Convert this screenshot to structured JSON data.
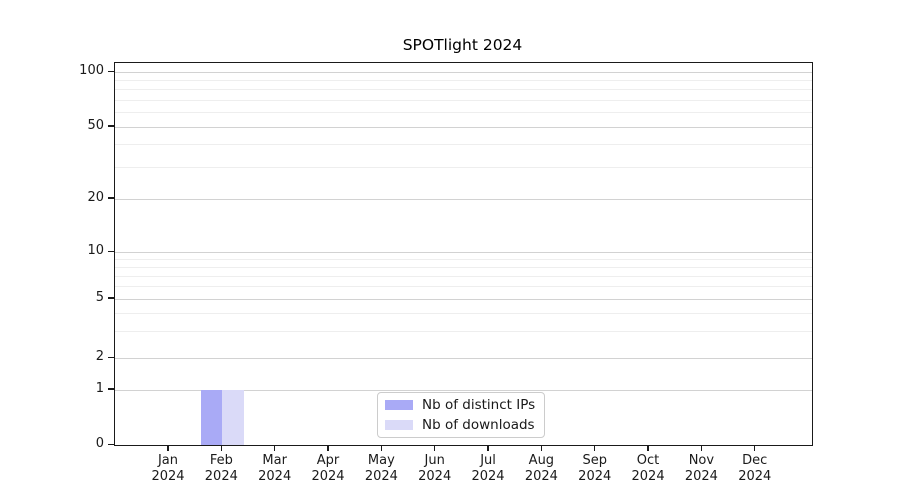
{
  "chart_data": {
    "type": "bar",
    "title": "SPOTlight 2024",
    "categories": [
      "Jan 2024",
      "Feb 2024",
      "Mar 2024",
      "Apr 2024",
      "May 2024",
      "Jun 2024",
      "Jul 2024",
      "Aug 2024",
      "Sep 2024",
      "Oct 2024",
      "Nov 2024",
      "Dec 2024"
    ],
    "series": [
      {
        "name": "Nb of distinct IPs",
        "color": "#a9aaf6",
        "values": [
          0,
          1,
          0,
          0,
          0,
          0,
          0,
          0,
          0,
          0,
          0,
          0
        ]
      },
      {
        "name": "Nb of downloads",
        "color": "#dadaf8",
        "values": [
          0,
          1,
          0,
          0,
          0,
          0,
          0,
          0,
          0,
          0,
          0,
          0
        ]
      }
    ],
    "y_axis": {
      "scale": "symlog",
      "ticks": [
        0,
        1,
        2,
        5,
        10,
        20,
        50,
        100
      ],
      "minor_ticks": [
        3,
        4,
        6,
        7,
        8,
        9,
        30,
        40,
        60,
        70,
        80,
        90
      ],
      "range": [
        0,
        110
      ],
      "tick_fractions": {
        "0": 0,
        "1": 0.144,
        "2": 0.2277,
        "5": 0.3822,
        "10": 0.5052,
        "20": 0.644,
        "50": 0.8325,
        "100": 0.9764
      }
    },
    "legend": {
      "position": "lower-center-inside",
      "entries": [
        "Nb of distinct IPs",
        "Nb of downloads"
      ]
    },
    "grid": {
      "horizontal_major": true,
      "horizontal_minor": true,
      "vertical": false
    }
  },
  "colors": {
    "background": "#ffffff",
    "spine": "#1a1a1a",
    "grid_major": "#d2d2d2",
    "grid_minor": "#eeeeee",
    "text": "#1a1a1a",
    "legend_border": "#cccccc"
  }
}
